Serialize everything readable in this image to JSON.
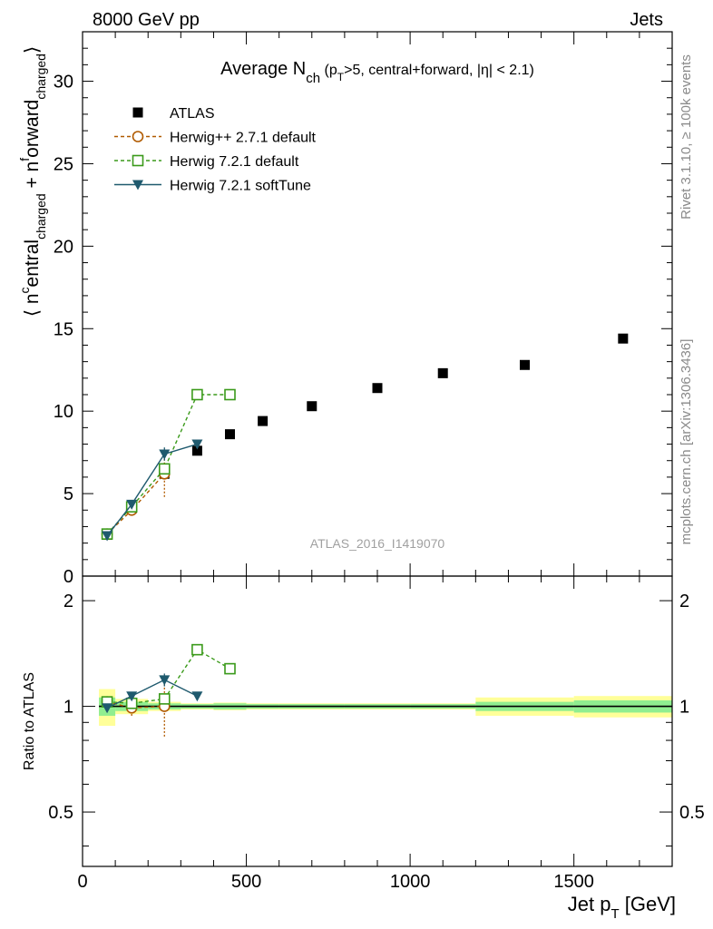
{
  "header": {
    "left": "8000 GeV pp",
    "right": "Jets"
  },
  "side_labels": {
    "rivet": "Rivet 3.1.10, ≥ 100k events",
    "mcplots": "mcplots.cern.ch [arXiv:1306.3436]"
  },
  "watermark": "ATLAS_2016_I1419070",
  "colors": {
    "atlas": "#000000",
    "herwigpp": "#b05a00",
    "herwig721": "#3a9a1a",
    "softtune": "#1f5a6e",
    "band_inner": "#90ee90",
    "band_outer": "#ffff99"
  },
  "chart_data": [
    {
      "type": "scatter",
      "title_main": "Average N",
      "title_sub": "ch",
      "title_rest": " (p",
      "title_rest_sub": "T",
      "title_tail": ">5, central+forward, |η| < 2.1)",
      "ylabel": "⟨ n^central_charged + n^forward_charged ⟩",
      "ylabel_parts": {
        "open": "⟨ n",
        "sup1": "c",
        "mid1": "entral",
        "sub1": "charged",
        "mid2": " + n",
        "sup2": "f",
        "mid3": "orward",
        "sub2": "charged",
        "close": "⟩"
      },
      "xlim": [
        0,
        1800
      ],
      "ylim": [
        0,
        33
      ],
      "yticks": [
        "0",
        "5",
        "10",
        "15",
        "20",
        "25",
        "30"
      ],
      "legend_position": "top-left",
      "series": [
        {
          "name": "ATLAS",
          "marker": "filled-square",
          "line": "none",
          "x": [
            75,
            150,
            250,
            350,
            450,
            550,
            700,
            900,
            1100,
            1350,
            1650
          ],
          "y": [
            2.5,
            4.1,
            6.2,
            7.6,
            8.6,
            9.4,
            10.3,
            11.4,
            12.3,
            12.8,
            14.4
          ]
        },
        {
          "name": "Herwig++ 2.7.1 default",
          "marker": "open-circle",
          "line": "dashed",
          "x": [
            75,
            150,
            250
          ],
          "y": [
            2.55,
            4.0,
            6.2
          ],
          "y_err": [
            0.1,
            0.2,
            1.4
          ]
        },
        {
          "name": "Herwig 7.2.1 default",
          "marker": "open-square",
          "line": "dashed",
          "x": [
            75,
            150,
            250,
            350,
            450
          ],
          "y": [
            2.55,
            4.2,
            6.5,
            11.0,
            11.0
          ]
        },
        {
          "name": "Herwig 7.2.1 softTune",
          "marker": "filled-triangle-down",
          "line": "solid",
          "x": [
            75,
            150,
            250,
            350
          ],
          "y": [
            2.45,
            4.35,
            7.4,
            8.0
          ],
          "y_err": [
            0.1,
            0.15,
            0.4,
            0.1
          ]
        }
      ]
    },
    {
      "type": "scatter",
      "ylabel": "Ratio to ATLAS",
      "xlabel": "Jet p_T [GeV]",
      "xlabel_main": "Jet p",
      "xlabel_sub": "T",
      "xlabel_unit": " [GeV]",
      "xlim": [
        0,
        1800
      ],
      "ylim": [
        0.35,
        2.35
      ],
      "xticks": [
        "0",
        "500",
        "1000",
        "1500"
      ],
      "yticks": [
        "0.5",
        "1",
        "2"
      ],
      "bands": {
        "bins": [
          [
            50,
            100
          ],
          [
            100,
            200
          ],
          [
            200,
            300
          ],
          [
            300,
            400
          ],
          [
            400,
            500
          ],
          [
            500,
            600
          ],
          [
            600,
            800
          ],
          [
            800,
            1000
          ],
          [
            1000,
            1200
          ],
          [
            1200,
            1500
          ],
          [
            1500,
            1800
          ]
        ],
        "inner": [
          0.06,
          0.03,
          0.02,
          0.015,
          0.02,
          0.015,
          0.015,
          0.015,
          0.015,
          0.03,
          0.04
        ],
        "outer": [
          0.12,
          0.05,
          0.03,
          0.02,
          0.025,
          0.02,
          0.02,
          0.02,
          0.02,
          0.06,
          0.07
        ]
      },
      "series": [
        {
          "name": "Herwig++ 2.7.1 default",
          "x": [
            75,
            150,
            250
          ],
          "y": [
            1.03,
            0.99,
            1.0
          ],
          "y_err": [
            0.03,
            0.05,
            0.18
          ]
        },
        {
          "name": "Herwig 7.2.1 default",
          "x": [
            75,
            150,
            250,
            350,
            450
          ],
          "y": [
            1.03,
            1.02,
            1.05,
            1.45,
            1.28
          ]
        },
        {
          "name": "Herwig 7.2.1 softTune",
          "x": [
            75,
            150,
            250,
            350
          ],
          "y": [
            0.99,
            1.07,
            1.19,
            1.07
          ],
          "y_err": [
            0.02,
            0.02,
            0.05,
            0.01
          ]
        }
      ]
    }
  ]
}
